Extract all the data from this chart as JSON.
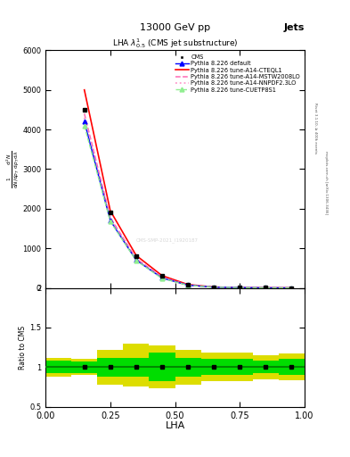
{
  "title_top": "13000 GeV pp",
  "title_right": "Jets",
  "plot_title": "LHA $\\lambda^1_{0.5}$ (CMS jet substructure)",
  "xlabel": "LHA",
  "ylabel_ratio": "Ratio to CMS",
  "right_label": "Rivet 3.1.10, ≥ 400k events",
  "right_label2": "mcplots.cern.ch [arXiv:1306.3436]",
  "watermark": "CMS-SMP-2021_I1920187",
  "cms_x": [
    0.15,
    0.25,
    0.35,
    0.45,
    0.55,
    0.65,
    0.75,
    0.85,
    0.95
  ],
  "cms_y": [
    4500,
    1900,
    800,
    300,
    80,
    20,
    8,
    3,
    1
  ],
  "pythia_default_x": [
    0.15,
    0.25,
    0.35,
    0.45,
    0.55,
    0.65,
    0.75,
    0.85,
    0.95
  ],
  "pythia_default_y": [
    4200,
    1700,
    700,
    250,
    70,
    18,
    7,
    2.5,
    0.8
  ],
  "cteql1_x": [
    0.15,
    0.25,
    0.35,
    0.45,
    0.55,
    0.65,
    0.75,
    0.85,
    0.95
  ],
  "cteql1_y": [
    5000,
    1950,
    820,
    310,
    85,
    22,
    8.5,
    3.2,
    1.1
  ],
  "mstw_x": [
    0.15,
    0.25,
    0.35,
    0.45,
    0.55,
    0.65,
    0.75,
    0.85,
    0.95
  ],
  "mstw_y": [
    4400,
    1780,
    740,
    270,
    72,
    19,
    7.5,
    2.7,
    0.9
  ],
  "nnpdf_x": [
    0.15,
    0.25,
    0.35,
    0.45,
    0.55,
    0.65,
    0.75,
    0.85,
    0.95
  ],
  "nnpdf_y": [
    4300,
    1750,
    720,
    260,
    68,
    18,
    7.0,
    2.5,
    0.8
  ],
  "cuetp_x": [
    0.15,
    0.25,
    0.35,
    0.45,
    0.55,
    0.65,
    0.75,
    0.85,
    0.95
  ],
  "cuetp_y": [
    4100,
    1680,
    690,
    240,
    65,
    17,
    6.5,
    2.3,
    0.75
  ],
  "ratio_edges": [
    0.0,
    0.1,
    0.2,
    0.3,
    0.4,
    0.5,
    0.6,
    0.7,
    0.8,
    0.9,
    1.0
  ],
  "ratio_green_low": [
    0.92,
    0.93,
    0.88,
    0.88,
    0.82,
    0.88,
    0.9,
    0.9,
    0.92,
    0.9
  ],
  "ratio_green_high": [
    1.08,
    1.07,
    1.12,
    1.12,
    1.18,
    1.12,
    1.1,
    1.1,
    1.08,
    1.1
  ],
  "ratio_yellow_low": [
    0.88,
    0.9,
    0.78,
    0.75,
    0.73,
    0.78,
    0.82,
    0.82,
    0.85,
    0.83
  ],
  "ratio_yellow_high": [
    1.12,
    1.1,
    1.22,
    1.3,
    1.27,
    1.22,
    1.18,
    1.18,
    1.15,
    1.17
  ],
  "colors": {
    "cms": "black",
    "pythia_default": "blue",
    "cteql1": "red",
    "mstw": "#ff69b4",
    "nnpdf": "#ff99cc",
    "cuetp": "#90ee90",
    "ratio_green": "#00dd00",
    "ratio_yellow": "#dddd00",
    "ratio_line": "#008800"
  },
  "ylim_main": [
    0,
    6000
  ],
  "ylim_ratio": [
    0.5,
    2.0
  ],
  "xlim": [
    0.0,
    1.0
  ],
  "yticks_main": [
    0,
    1000,
    2000,
    3000,
    4000,
    5000,
    6000
  ],
  "ytick_labels_main": [
    "0",
    "1000",
    "2000",
    "3000",
    "4000",
    "5000",
    "6000"
  ],
  "yticks_ratio": [
    0.5,
    1.0,
    1.5,
    2.0
  ],
  "ytick_labels_ratio": [
    "0.5",
    "1",
    "1.5",
    "2"
  ],
  "xticks": [
    0.0,
    0.25,
    0.5,
    0.75,
    1.0
  ]
}
